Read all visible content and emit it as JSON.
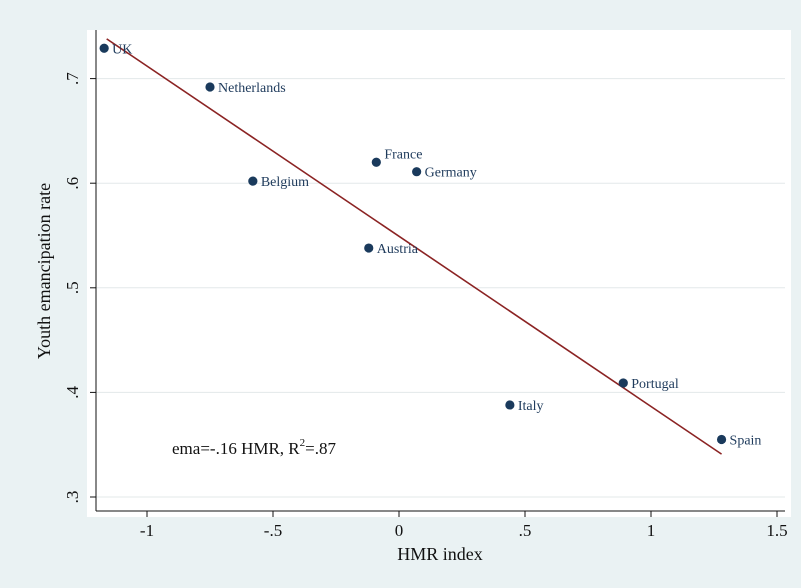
{
  "chart_data": {
    "type": "scatter",
    "title": "",
    "xlabel": "HMR index",
    "ylabel": "Youth emancipation rate",
    "xlim": [
      -1.2,
      1.55
    ],
    "ylim": [
      0.29,
      0.745
    ],
    "xticks": [
      -1,
      -0.5,
      0,
      0.5,
      1,
      1.5
    ],
    "xtick_labels": [
      "-1",
      "-.5",
      "0",
      ".5",
      "1",
      "1.5"
    ],
    "yticks": [
      0.3,
      0.4,
      0.5,
      0.6,
      0.7
    ],
    "ytick_labels": [
      ".3",
      ".4",
      ".5",
      ".6",
      ".7"
    ],
    "grid": "horizontal",
    "points": [
      {
        "label": "UK",
        "x": -1.17,
        "y": 0.729
      },
      {
        "label": "Netherlands",
        "x": -0.75,
        "y": 0.692
      },
      {
        "label": "Belgium",
        "x": -0.58,
        "y": 0.602
      },
      {
        "label": "France",
        "x": -0.09,
        "y": 0.62
      },
      {
        "label": "Germany",
        "x": 0.07,
        "y": 0.611
      },
      {
        "label": "Austria",
        "x": -0.12,
        "y": 0.538
      },
      {
        "label": "Italy",
        "x": 0.44,
        "y": 0.388
      },
      {
        "label": "Portugal",
        "x": 0.89,
        "y": 0.409
      },
      {
        "label": "Spain",
        "x": 1.28,
        "y": 0.355
      }
    ],
    "fit_line": {
      "x": [
        -1.16,
        1.28
      ],
      "y": [
        0.738,
        0.341
      ]
    },
    "annotation": {
      "main": "ema=-.16 HMR, R",
      "sup": "2",
      "tail": "=.87"
    },
    "colors": {
      "marker": "#1a3a5c",
      "fit": "#8b2323",
      "background": "#eaf2f3",
      "plot_area": "#ffffff",
      "grid": "#e3e8ea"
    }
  }
}
